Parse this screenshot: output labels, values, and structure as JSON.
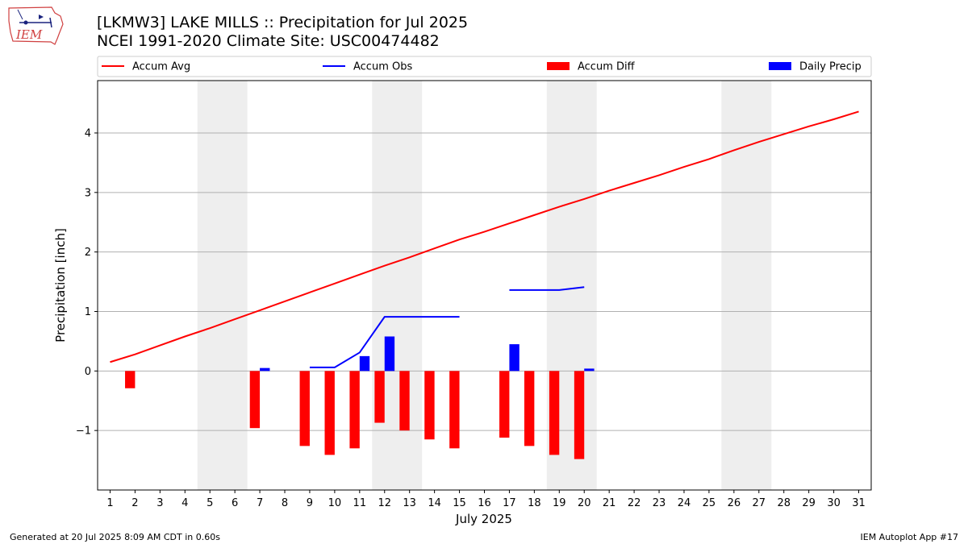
{
  "header": {
    "title_line1": "[LKMW3] LAKE MILLS :: Precipitation for Jul 2025",
    "title_line2": "NCEI 1991-2020 Climate Site: USC00474482",
    "logo_text": "IEM"
  },
  "footer": {
    "generated": "Generated at 20 Jul 2025 8:09 AM CDT in 0.60s",
    "app": "IEM Autoplot App #17"
  },
  "colors": {
    "avg": "#ff0000",
    "obs": "#0000ff",
    "diff": "#ff0000",
    "daily": "#0000ff",
    "weekend": "#eeeeee",
    "grid": "#b0b0b0"
  },
  "chart_data": {
    "type": "bar",
    "xlabel": "July 2025",
    "ylabel": "Precipitation [inch]",
    "xlim": [
      0.5,
      31.5
    ],
    "ylim": [
      -2.0,
      4.88
    ],
    "days": [
      1,
      2,
      3,
      4,
      5,
      6,
      7,
      8,
      9,
      10,
      11,
      12,
      13,
      14,
      15,
      16,
      17,
      18,
      19,
      20,
      21,
      22,
      23,
      24,
      25,
      26,
      27,
      28,
      29,
      30,
      31
    ],
    "yticks": [
      -1,
      0,
      1,
      2,
      3,
      4
    ],
    "ytick_labels": [
      "−1",
      "0",
      "1",
      "2",
      "3",
      "4"
    ],
    "grid": "y",
    "legend_position": "top",
    "weekend_bands": [
      [
        4.5,
        6.5
      ],
      [
        11.5,
        13.5
      ],
      [
        18.5,
        20.5
      ],
      [
        25.5,
        27.5
      ]
    ],
    "series": [
      {
        "name": "Accum Avg",
        "kind": "line",
        "x": [
          1,
          2,
          3,
          4,
          5,
          6,
          7,
          8,
          9,
          10,
          11,
          12,
          13,
          14,
          15,
          16,
          17,
          18,
          19,
          20,
          21,
          22,
          23,
          24,
          25,
          26,
          27,
          28,
          29,
          30,
          31
        ],
        "values": [
          0.15,
          0.28,
          0.43,
          0.58,
          0.72,
          0.87,
          1.02,
          1.17,
          1.32,
          1.47,
          1.62,
          1.77,
          1.91,
          2.06,
          2.21,
          2.34,
          2.48,
          2.62,
          2.76,
          2.89,
          3.03,
          3.16,
          3.29,
          3.43,
          3.56,
          3.71,
          3.85,
          3.98,
          4.11,
          4.23,
          4.36
        ]
      },
      {
        "name": "Accum Obs",
        "kind": "line",
        "segments": [
          {
            "x": [
              9,
              10,
              11,
              12,
              13,
              14,
              15
            ],
            "values": [
              0.06,
              0.06,
              0.31,
              0.91,
              0.91,
              0.91,
              0.91
            ]
          },
          {
            "x": [
              17,
              18,
              19,
              20
            ],
            "values": [
              1.36,
              1.36,
              1.36,
              1.41
            ]
          }
        ]
      },
      {
        "name": "Accum Diff",
        "kind": "bar",
        "x": [
          2,
          7,
          9,
          10,
          11,
          12,
          13,
          14,
          15,
          17,
          18,
          19,
          20
        ],
        "values": [
          -0.29,
          -0.96,
          -1.26,
          -1.41,
          -1.3,
          -0.87,
          -1.0,
          -1.15,
          -1.3,
          -1.12,
          -1.26,
          -1.41,
          -1.48
        ]
      },
      {
        "name": "Daily Precip",
        "kind": "bar",
        "x": [
          7,
          11,
          12,
          17,
          20
        ],
        "values": [
          0.05,
          0.25,
          0.58,
          0.45,
          0.04
        ]
      }
    ]
  }
}
